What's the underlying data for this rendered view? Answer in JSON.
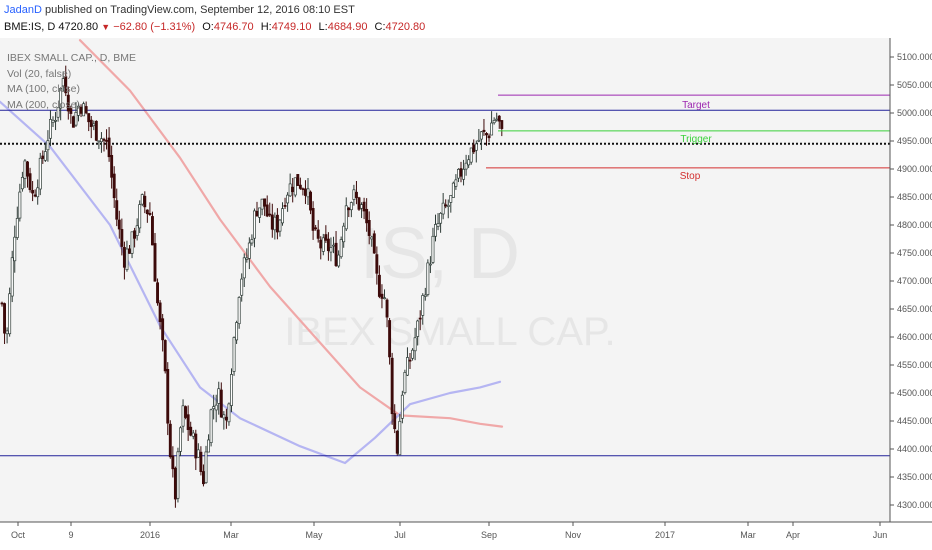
{
  "header": {
    "author": "JadanD",
    "published_text": "published on TradingView.com, September 12, 2016 08:10 EST",
    "symbol_line": "BME:IS, D 4720.80",
    "change": "−62.80 (−1.31%)",
    "open_label": "O:",
    "open_value": "4746.70",
    "high_label": "H:",
    "high_value": "4749.10",
    "low_label": "L:",
    "low_value": "4684.90",
    "close_label": "C:",
    "close_value": "4720.80"
  },
  "legend": {
    "title": "IBEX SMALL CAP., D, BME",
    "vol": "Vol (20, false)",
    "ma100": "MA (100, close)",
    "ma200": "MA (200, close)"
  },
  "watermark": {
    "symbol": "IS, D",
    "name": "IBEX SMALL CAP."
  },
  "levels": {
    "target": "Target",
    "trigger": "Trigger",
    "stop": "Stop"
  },
  "colors": {
    "up": "#2e3b36",
    "down": "#3d0a0a",
    "ma100": "#b5b5f2",
    "ma200": "#f0a8a8",
    "hline": "#22229a",
    "target": "#9c27b0",
    "trigger": "#3ad13a",
    "stop": "#d32f2f"
  },
  "chart_data": {
    "type": "candlestick",
    "y_axis_ticks": [
      "5100.0000",
      "5050.0000",
      "5000.0000",
      "4950.0000",
      "4900.0000",
      "4850.0000",
      "4800.0000",
      "4750.0000",
      "4700.0000",
      "4650.0000",
      "4600.0000",
      "4550.0000",
      "4500.0000",
      "4450.0000",
      "4400.0000",
      "4350.0000",
      "4300.0000"
    ],
    "x_axis_ticks": [
      "Oct",
      "9",
      "2016",
      "Mar",
      "May",
      "Jul",
      "Sep",
      "Nov",
      "2017",
      "Mar",
      "Apr",
      "Jun"
    ],
    "ylim": [
      4290,
      5118
    ],
    "price_path": [
      [
        0,
        4700
      ],
      [
        6,
        4580
      ],
      [
        14,
        4780
      ],
      [
        24,
        4920
      ],
      [
        33,
        4850
      ],
      [
        40,
        4900
      ],
      [
        48,
        4960
      ],
      [
        56,
        5000
      ],
      [
        64,
        5070
      ],
      [
        72,
        4980
      ],
      [
        80,
        5020
      ],
      [
        90,
        4980
      ],
      [
        100,
        4960
      ],
      [
        108,
        4940
      ],
      [
        116,
        4820
      ],
      [
        124,
        4740
      ],
      [
        132,
        4770
      ],
      [
        142,
        4840
      ],
      [
        150,
        4820
      ],
      [
        158,
        4650
      ],
      [
        164,
        4560
      ],
      [
        170,
        4400
      ],
      [
        175,
        4310
      ],
      [
        182,
        4470
      ],
      [
        192,
        4420
      ],
      [
        198,
        4390
      ],
      [
        203,
        4340
      ],
      [
        210,
        4460
      ],
      [
        218,
        4500
      ],
      [
        226,
        4440
      ],
      [
        233,
        4580
      ],
      [
        240,
        4700
      ],
      [
        248,
        4750
      ],
      [
        256,
        4830
      ],
      [
        264,
        4840
      ],
      [
        270,
        4800
      ],
      [
        278,
        4800
      ],
      [
        286,
        4860
      ],
      [
        296,
        4880
      ],
      [
        306,
        4870
      ],
      [
        314,
        4780
      ],
      [
        322,
        4760
      ],
      [
        330,
        4760
      ],
      [
        338,
        4740
      ],
      [
        346,
        4840
      ],
      [
        354,
        4850
      ],
      [
        362,
        4830
      ],
      [
        370,
        4780
      ],
      [
        378,
        4690
      ],
      [
        384,
        4680
      ],
      [
        388,
        4610
      ],
      [
        392,
        4480
      ],
      [
        397,
        4395
      ],
      [
        403,
        4520
      ],
      [
        410,
        4560
      ],
      [
        418,
        4620
      ],
      [
        426,
        4700
      ],
      [
        434,
        4780
      ],
      [
        442,
        4820
      ],
      [
        450,
        4840
      ],
      [
        458,
        4880
      ],
      [
        466,
        4920
      ],
      [
        474,
        4940
      ],
      [
        482,
        4960
      ],
      [
        488,
        4960
      ],
      [
        493,
        4990
      ],
      [
        498,
        4990
      ],
      [
        503,
        4950
      ]
    ],
    "ma100_path": [
      [
        0,
        5020
      ],
      [
        50,
        4940
      ],
      [
        110,
        4800
      ],
      [
        160,
        4620
      ],
      [
        200,
        4510
      ],
      [
        240,
        4455
      ],
      [
        300,
        4405
      ],
      [
        345,
        4375
      ],
      [
        375,
        4420
      ],
      [
        410,
        4480
      ],
      [
        450,
        4500
      ],
      [
        480,
        4510
      ],
      [
        500,
        4520
      ]
    ],
    "ma200_path": [
      [
        80,
        5130
      ],
      [
        130,
        5040
      ],
      [
        180,
        4920
      ],
      [
        220,
        4810
      ],
      [
        270,
        4690
      ],
      [
        320,
        4590
      ],
      [
        360,
        4510
      ],
      [
        400,
        4460
      ],
      [
        450,
        4455
      ],
      [
        480,
        4445
      ],
      [
        502,
        4440
      ]
    ],
    "horizontal_lines": [
      {
        "name": "upper",
        "y": 5005,
        "x_from": 0,
        "x_to": 890
      },
      {
        "name": "dotted",
        "y": 4945,
        "x_from": 0,
        "x_to": 890,
        "dotted": true
      },
      {
        "name": "lower",
        "y": 4388,
        "x_from": 0,
        "x_to": 890
      }
    ],
    "trade_levels": [
      {
        "name": "target",
        "y": 5032,
        "x_from": 498,
        "x_to": 890
      },
      {
        "name": "trigger",
        "y": 4968,
        "x_from": 498,
        "x_to": 890
      },
      {
        "name": "stop",
        "y": 4902,
        "x_from": 486,
        "x_to": 890
      }
    ]
  }
}
